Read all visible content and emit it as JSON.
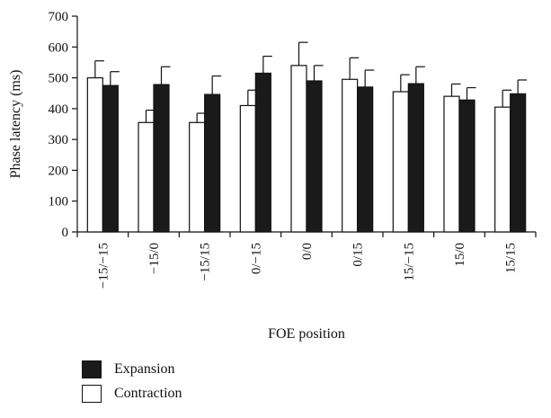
{
  "chart_data": {
    "type": "bar",
    "title": "",
    "xlabel": "FOE position",
    "ylabel": "Phase latency (ms)",
    "ylim": [
      0,
      700
    ],
    "yticks": [
      0,
      100,
      200,
      300,
      400,
      500,
      600,
      700
    ],
    "categories": [
      "−15/−15",
      "−15/0",
      "−15/15",
      "0/−15",
      "0/0",
      "0/15",
      "15/−15",
      "15/0",
      "15/15"
    ],
    "series": [
      {
        "name": "Contraction",
        "color": "#ffffff",
        "values": [
          500,
          355,
          355,
          410,
          540,
          495,
          455,
          440,
          405
        ],
        "errors": [
          55,
          40,
          30,
          50,
          75,
          70,
          55,
          40,
          55
        ]
      },
      {
        "name": "Expansion",
        "color": "#1a1a1a",
        "values": [
          475,
          478,
          446,
          515,
          490,
          470,
          481,
          428,
          448
        ],
        "errors": [
          45,
          58,
          60,
          55,
          50,
          55,
          55,
          40,
          45
        ]
      }
    ],
    "legend_order": [
      "Expansion",
      "Contraction"
    ],
    "legend_position": "bottom-left",
    "grid": false
  }
}
